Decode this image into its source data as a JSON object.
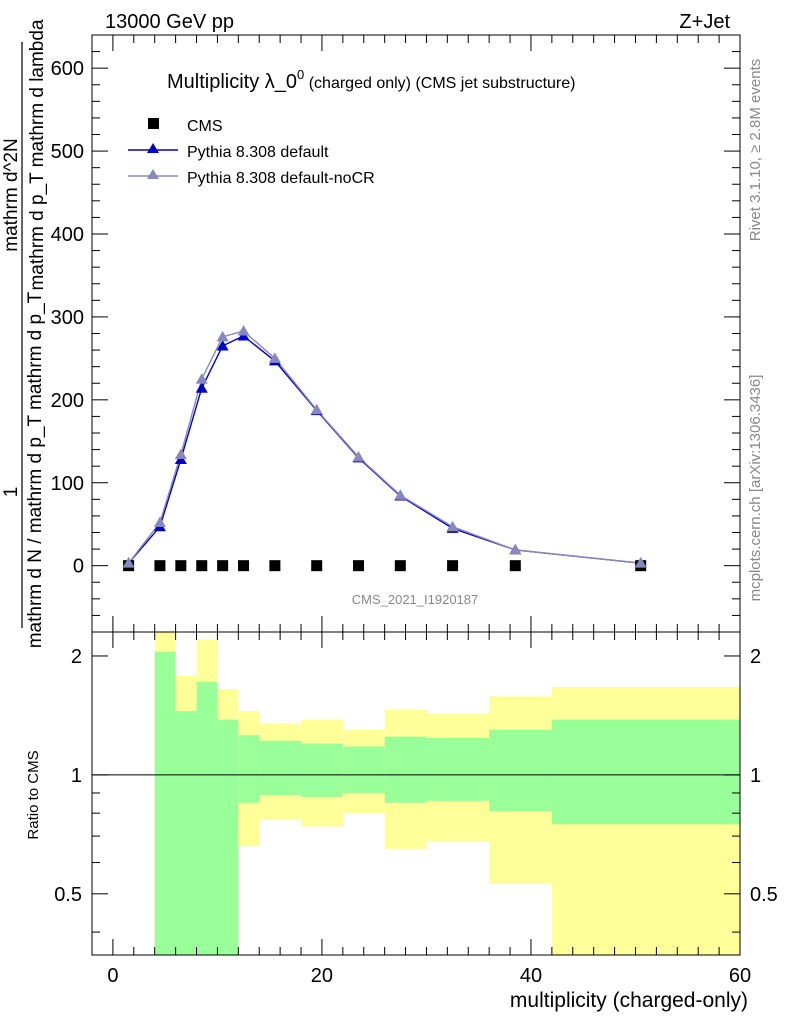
{
  "header": {
    "left": "13000 GeV pp",
    "right": "Z+Jet"
  },
  "side": {
    "rivet": "Rivet 3.1.10, ≥ 2.8M events",
    "mcplots": "mcplots.cern.ch [arXiv:1306.3436]"
  },
  "chart_data": [
    {
      "type": "scatter",
      "title_main": "Multiplicity λ_0",
      "title_sup": "0",
      "title_rest": " (charged only) (CMS jet substructure)",
      "ylabel_top": "1",
      "ylabel_bottom": "mathrm d N / mathrm d p_T mathrm d p_T",
      "ylabel_num": "mathrm d^2N",
      "ylabel_den": "mathrm d p_T mathrm d lambda",
      "xlabel": "",
      "xlim": [
        -2,
        60
      ],
      "ylim": [
        -80,
        640
      ],
      "yticks": [
        0,
        100,
        200,
        300,
        400,
        500,
        600
      ],
      "watermark": "CMS_2021_I1920187",
      "legend_position": "top-left",
      "series": [
        {
          "name": "CMS",
          "color": "#000000",
          "marker": "square",
          "x": [
            1.5,
            4.5,
            6.5,
            8.5,
            10.5,
            12.5,
            15.5,
            19.5,
            23.5,
            27.5,
            32.5,
            38.5,
            50.5
          ],
          "values": [
            0,
            0,
            0,
            0,
            0,
            0,
            0,
            0,
            0,
            0,
            0,
            0,
            0
          ]
        },
        {
          "name": "Pythia 8.308 default",
          "color": "#0000cc",
          "marker": "triangle",
          "x": [
            1.5,
            4.5,
            6.5,
            8.5,
            10.5,
            12.5,
            15.5,
            19.5,
            23.5,
            27.5,
            32.5,
            38.5,
            50.5
          ],
          "values": [
            3,
            47,
            128,
            214,
            265,
            277,
            247,
            187,
            130,
            84,
            45,
            19,
            3
          ]
        },
        {
          "name": "Pythia 8.308 default-noCR",
          "color": "#8888bb",
          "marker": "triangle",
          "x": [
            1.5,
            4.5,
            6.5,
            8.5,
            10.5,
            12.5,
            15.5,
            19.5,
            23.5,
            27.5,
            32.5,
            38.5,
            50.5
          ],
          "values": [
            3,
            52,
            134,
            225,
            276,
            283,
            250,
            188,
            131,
            85,
            47,
            19,
            3
          ]
        }
      ]
    },
    {
      "type": "area",
      "ylabel": "Ratio to CMS",
      "xlabel": "multiplicity (charged-only)",
      "xlim": [
        -2,
        60
      ],
      "ylim": [
        0.35,
        2.3
      ],
      "yticks": [
        0.5,
        1,
        2
      ],
      "xticks": [
        0,
        20,
        40,
        60
      ],
      "reference_line": 1,
      "bands": {
        "edges": [
          2,
          4,
          6,
          8,
          10,
          12,
          14,
          18,
          22,
          26,
          30,
          36,
          42,
          60
        ],
        "stat_color": "#99ff99",
        "total_color": "#ffff99",
        "stat_lo": [
          null,
          0.0,
          0.0,
          0.0,
          0.0,
          0.85,
          0.89,
          0.88,
          0.9,
          0.85,
          0.86,
          0.81,
          0.75
        ],
        "stat_hi": [
          null,
          2.05,
          1.45,
          1.72,
          1.38,
          1.26,
          1.22,
          1.2,
          1.18,
          1.25,
          1.24,
          1.3,
          1.38
        ],
        "total_lo": [
          null,
          0.0,
          0.68,
          0.0,
          0.35,
          0.66,
          0.77,
          0.74,
          0.8,
          0.65,
          0.68,
          0.53,
          0.0
        ],
        "total_hi": [
          null,
          2.4,
          1.78,
          2.2,
          1.65,
          1.45,
          1.35,
          1.38,
          1.3,
          1.46,
          1.43,
          1.58,
          1.67
        ]
      }
    }
  ]
}
